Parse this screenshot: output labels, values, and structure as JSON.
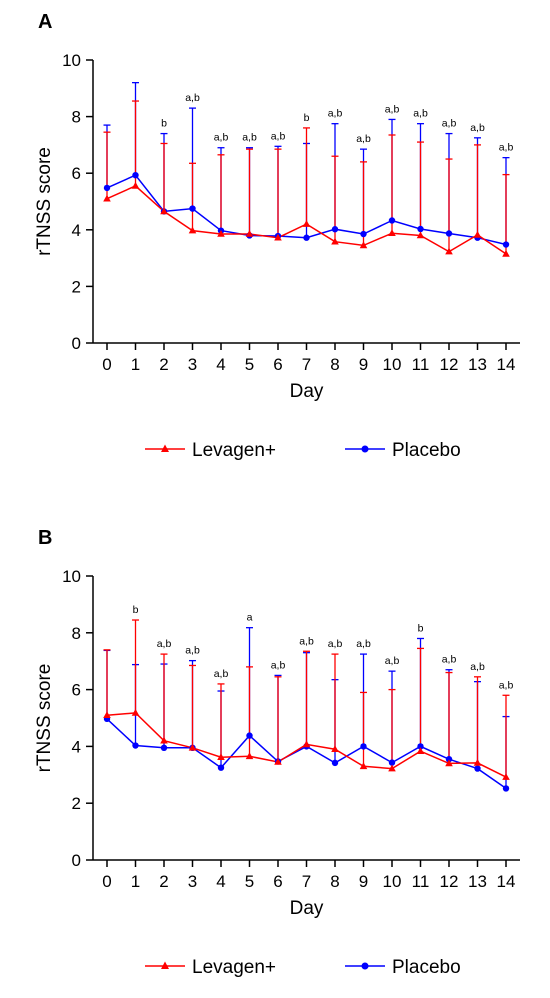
{
  "chart_data": [
    {
      "panel_label": "A",
      "type": "line",
      "xlabel": "Day",
      "ylabel": "rTNSS score",
      "x": [
        0,
        1,
        2,
        3,
        4,
        5,
        6,
        7,
        8,
        9,
        10,
        11,
        12,
        13,
        14
      ],
      "xlim": [
        0,
        14
      ],
      "ylim": [
        0,
        10
      ],
      "yticks": [
        0,
        2,
        4,
        6,
        8,
        10
      ],
      "legend_position": "bottom",
      "series": [
        {
          "name": "Levagen+",
          "color": "#ff0000",
          "marker": "triangle",
          "values": [
            5.1,
            5.55,
            4.65,
            3.97,
            3.85,
            3.85,
            3.72,
            4.2,
            3.58,
            3.45,
            3.88,
            3.8,
            3.23,
            3.82,
            3.15
          ],
          "error_upper": [
            7.45,
            8.55,
            7.05,
            6.35,
            6.65,
            6.85,
            6.85,
            7.6,
            6.6,
            6.4,
            7.35,
            7.1,
            6.5,
            7.0,
            5.95
          ]
        },
        {
          "name": "Placebo",
          "color": "#0000ff",
          "marker": "circle",
          "values": [
            5.48,
            5.93,
            4.65,
            4.75,
            3.97,
            3.8,
            3.78,
            3.72,
            4.02,
            3.85,
            4.33,
            4.03,
            3.87,
            3.72,
            3.48
          ],
          "error_upper": [
            7.7,
            9.2,
            7.4,
            8.3,
            6.9,
            6.9,
            6.95,
            7.05,
            7.75,
            6.85,
            7.9,
            7.75,
            7.4,
            7.25,
            6.55
          ]
        }
      ],
      "annotations": [
        "",
        "",
        "b",
        "a,b",
        "a,b",
        "a,b",
        "a,b",
        "b",
        "a,b",
        "a,b",
        "a,b",
        "a,b",
        "a,b",
        "a,b",
        "a,b"
      ]
    },
    {
      "panel_label": "B",
      "type": "line",
      "xlabel": "Day",
      "ylabel": "rTNSS score",
      "x": [
        0,
        1,
        2,
        3,
        4,
        5,
        6,
        7,
        8,
        9,
        10,
        11,
        12,
        13,
        14
      ],
      "xlim": [
        0,
        14
      ],
      "ylim": [
        0,
        10
      ],
      "yticks": [
        0,
        2,
        4,
        6,
        8,
        10
      ],
      "legend_position": "bottom",
      "series": [
        {
          "name": "Levagen+",
          "color": "#ff0000",
          "marker": "triangle",
          "values": [
            5.1,
            5.18,
            4.2,
            3.95,
            3.62,
            3.65,
            3.45,
            4.07,
            3.9,
            3.3,
            3.22,
            3.83,
            3.4,
            3.42,
            2.92
          ],
          "error_upper": [
            7.4,
            8.45,
            7.25,
            6.85,
            6.2,
            6.8,
            6.45,
            7.35,
            7.25,
            5.9,
            6.0,
            7.45,
            6.6,
            6.45,
            5.8
          ]
        },
        {
          "name": "Placebo",
          "color": "#0000ff",
          "marker": "circle",
          "values": [
            4.97,
            4.03,
            3.95,
            3.95,
            3.25,
            4.38,
            3.47,
            4.0,
            3.42,
            4.0,
            3.43,
            4.0,
            3.55,
            3.22,
            2.52
          ],
          "error_upper": [
            7.38,
            6.88,
            6.9,
            7.02,
            5.95,
            8.18,
            6.5,
            7.3,
            6.35,
            7.25,
            6.65,
            7.8,
            6.7,
            6.28,
            5.05
          ]
        }
      ],
      "annotations": [
        "",
        "b",
        "a,b",
        "a,b",
        "a,b",
        "a",
        "a,b",
        "a,b",
        "a,b",
        "a,b",
        "a,b",
        "b",
        "a,b",
        "a,b",
        "a,b"
      ]
    }
  ]
}
